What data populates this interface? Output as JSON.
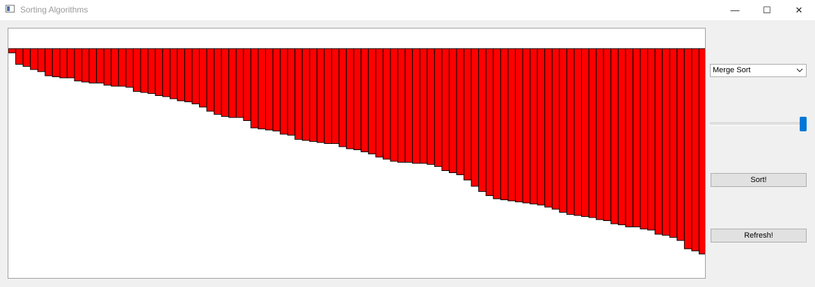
{
  "window": {
    "title": "Sorting Algorithms",
    "minimize_glyph": "—",
    "maximize_glyph": "☐",
    "close_glyph": "✕"
  },
  "controls": {
    "algorithm_selected": "Merge Sort",
    "speed_level": 1.0,
    "sort_label": "Sort!",
    "refresh_label": "Refresh!"
  },
  "colors": {
    "bar_fill": "#ff0000",
    "bar_stroke": "#000000",
    "slider_accent": "#0078d7"
  },
  "chart_data": {
    "type": "bar",
    "orientation": "hanging",
    "values": [
      4,
      15,
      17,
      20,
      22,
      26,
      27,
      28,
      28,
      31,
      32,
      33,
      33,
      35,
      36,
      36,
      37,
      41,
      42,
      43,
      45,
      46,
      48,
      50,
      51,
      53,
      56,
      60,
      63,
      65,
      66,
      66,
      69,
      76,
      77,
      78,
      79,
      82,
      83,
      87,
      88,
      89,
      90,
      91,
      91,
      94,
      96,
      97,
      99,
      101,
      104,
      106,
      108,
      109,
      109,
      110,
      110,
      111,
      113,
      117,
      119,
      121,
      126,
      132,
      137,
      141,
      144,
      145,
      146,
      147,
      148,
      149,
      150,
      152,
      154,
      157,
      159,
      160,
      161,
      162,
      164,
      165,
      168,
      169,
      171,
      171,
      173,
      174,
      178,
      179,
      181,
      184,
      192,
      194,
      197
    ],
    "ylim": [
      0,
      200
    ]
  }
}
